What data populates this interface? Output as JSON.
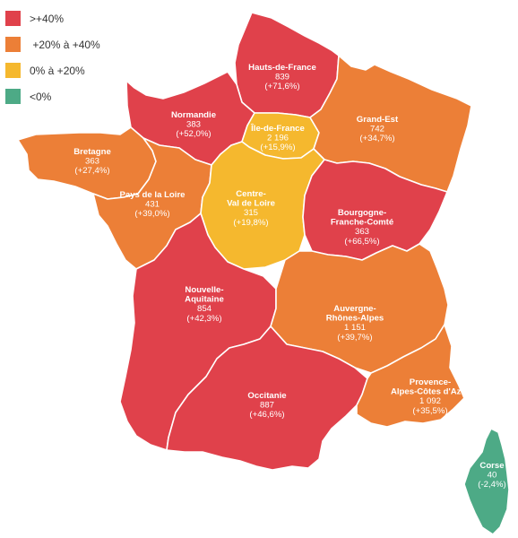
{
  "legend": [
    {
      "label": ">+40%",
      "color": "#e0414b"
    },
    {
      "label": " +20% à +40%",
      "color": "#ec7f37"
    },
    {
      "label": "0% à +20%",
      "color": "#f5b82e"
    },
    {
      "label": "<0%",
      "color": "#4daa86"
    }
  ],
  "regions": [
    {
      "id": "hauts-de-france",
      "name": [
        "Hauts-de-France"
      ],
      "value": "839",
      "change": "(+71,6%)",
      "color": "#e0414b"
    },
    {
      "id": "normandie",
      "name": [
        "Normandie"
      ],
      "value": "383",
      "change": "(+52,0%)",
      "color": "#e0414b"
    },
    {
      "id": "ile-de-france",
      "name": [
        "Île-de-France"
      ],
      "value": "2 196",
      "change": "(+15,9%)",
      "color": "#f5b82e"
    },
    {
      "id": "grand-est",
      "name": [
        "Grand-Est"
      ],
      "value": "742",
      "change": "(+34,7%)",
      "color": "#ec7f37"
    },
    {
      "id": "bretagne",
      "name": [
        "Bretagne"
      ],
      "value": "363",
      "change": "(+27,4%)",
      "color": "#ec7f37"
    },
    {
      "id": "pays-de-la-loire",
      "name": [
        "Pays de la Loire"
      ],
      "value": "431",
      "change": "(+39,0%)",
      "color": "#ec7f37"
    },
    {
      "id": "centre-val-de-loire",
      "name": [
        "Centre-",
        "Val de Loire"
      ],
      "value": "315",
      "change": "(+19,8%)",
      "color": "#f5b82e"
    },
    {
      "id": "bourgogne-franche-comte",
      "name": [
        "Bourgogne-",
        "Franche-Comté"
      ],
      "value": "363",
      "change": "(+66,5%)",
      "color": "#e0414b"
    },
    {
      "id": "nouvelle-aquitaine",
      "name": [
        "Nouvelle-",
        "Aquitaine"
      ],
      "value": "854",
      "change": "(+42,3%)",
      "color": "#e0414b"
    },
    {
      "id": "auvergne-rhone-alpes",
      "name": [
        "Auvergne-",
        "Rhônes-Alpes"
      ],
      "value": "1 151",
      "change": "(+39,7%)",
      "color": "#ec7f37"
    },
    {
      "id": "occitanie",
      "name": [
        "Occitanie"
      ],
      "value": "887",
      "change": "(+46,6%)",
      "color": "#e0414b"
    },
    {
      "id": "provence-alpes-cote-d-azur",
      "name": [
        "Provence-",
        "Alpes-Côtes d'Azur"
      ],
      "value": "1 092",
      "change": "(+35,5%)",
      "color": "#ec7f37"
    },
    {
      "id": "corse",
      "name": [
        "Corse"
      ],
      "value": "40",
      "change": "(-2,4%)",
      "color": "#4daa86"
    }
  ]
}
